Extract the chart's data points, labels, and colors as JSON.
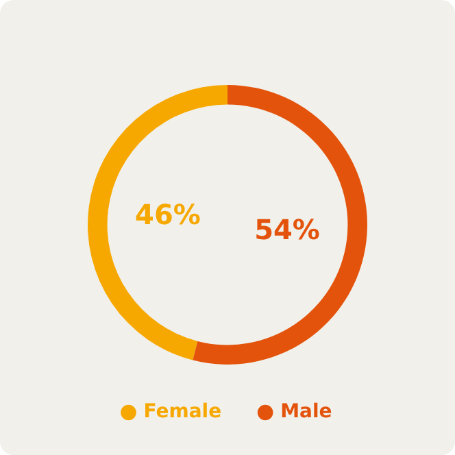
{
  "chart_data": {
    "type": "donut",
    "categories": [
      "Female",
      "Male"
    ],
    "values": [
      46,
      54
    ],
    "colors": [
      "#f7a800",
      "#e4530b"
    ],
    "value_labels": [
      "46%",
      "54%"
    ],
    "legend": "bottom"
  }
}
